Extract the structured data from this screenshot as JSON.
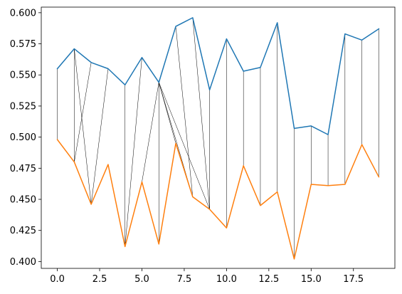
{
  "chart_data": {
    "type": "line",
    "title": "",
    "xlabel": "",
    "ylabel": "",
    "xlim": [
      -0.95,
      19.95
    ],
    "ylim": [
      0.3945,
      0.6045
    ],
    "grid": false,
    "x": [
      0,
      1,
      2,
      3,
      4,
      5,
      6,
      7,
      8,
      9,
      10,
      11,
      12,
      13,
      14,
      15,
      16,
      17,
      18,
      19
    ],
    "series": [
      {
        "color": "#1f77b4",
        "values": [
          0.555,
          0.571,
          0.56,
          0.555,
          0.542,
          0.564,
          0.544,
          0.589,
          0.596,
          0.538,
          0.579,
          0.553,
          0.556,
          0.592,
          0.507,
          0.509,
          0.502,
          0.583,
          0.578,
          0.587
        ]
      },
      {
        "color": "#ff7f0e",
        "values": [
          0.498,
          0.48,
          0.446,
          0.478,
          0.412,
          0.464,
          0.414,
          0.495,
          0.452,
          0.442,
          0.427,
          0.477,
          0.445,
          0.456,
          0.402,
          0.462,
          0.461,
          0.462,
          0.494,
          0.468
        ]
      }
    ],
    "connectors": [
      [
        0,
        0
      ],
      [
        1,
        1
      ],
      [
        1,
        2
      ],
      [
        2,
        1
      ],
      [
        3,
        2
      ],
      [
        4,
        4
      ],
      [
        5,
        4
      ],
      [
        6,
        5
      ],
      [
        6,
        6
      ],
      [
        6,
        7
      ],
      [
        6,
        8
      ],
      [
        7,
        8
      ],
      [
        6,
        9
      ],
      [
        8,
        9
      ],
      [
        9,
        9
      ],
      [
        10,
        10
      ],
      [
        11,
        11
      ],
      [
        12,
        12
      ],
      [
        13,
        13
      ],
      [
        14,
        14
      ],
      [
        15,
        15
      ],
      [
        16,
        16
      ],
      [
        17,
        17
      ],
      [
        18,
        18
      ],
      [
        19,
        19
      ]
    ],
    "connector_color": "#000000",
    "x_ticks": [
      {
        "value": 0,
        "label": "0.0"
      },
      {
        "value": 2.5,
        "label": "2.5"
      },
      {
        "value": 5,
        "label": "5.0"
      },
      {
        "value": 7.5,
        "label": "7.5"
      },
      {
        "value": 10,
        "label": "10.0"
      },
      {
        "value": 12.5,
        "label": "12.5"
      },
      {
        "value": 15,
        "label": "15.0"
      },
      {
        "value": 17.5,
        "label": "17.5"
      }
    ],
    "y_ticks": [
      {
        "value": 0.4,
        "label": "0.400"
      },
      {
        "value": 0.425,
        "label": "0.425"
      },
      {
        "value": 0.45,
        "label": "0.450"
      },
      {
        "value": 0.475,
        "label": "0.475"
      },
      {
        "value": 0.5,
        "label": "0.500"
      },
      {
        "value": 0.525,
        "label": "0.525"
      },
      {
        "value": 0.55,
        "label": "0.550"
      },
      {
        "value": 0.575,
        "label": "0.575"
      },
      {
        "value": 0.6,
        "label": "0.600"
      }
    ]
  }
}
